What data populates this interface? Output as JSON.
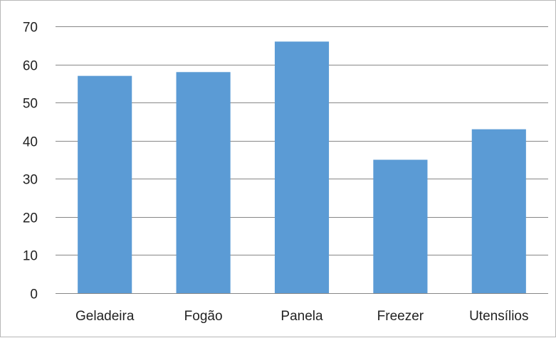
{
  "chart_data": {
    "type": "bar",
    "categories": [
      "Geladeira",
      "Fogão",
      "Panela",
      "Freezer",
      "Utensílios"
    ],
    "values": [
      57,
      58,
      66,
      35,
      43
    ],
    "title": "",
    "xlabel": "",
    "ylabel": "",
    "ylim": [
      0,
      70
    ],
    "yticks": [
      0,
      10,
      20,
      30,
      40,
      50,
      60,
      70
    ],
    "grid": true,
    "legend": "none",
    "bar_color": "#5b9bd5",
    "grid_color": "#878787"
  }
}
